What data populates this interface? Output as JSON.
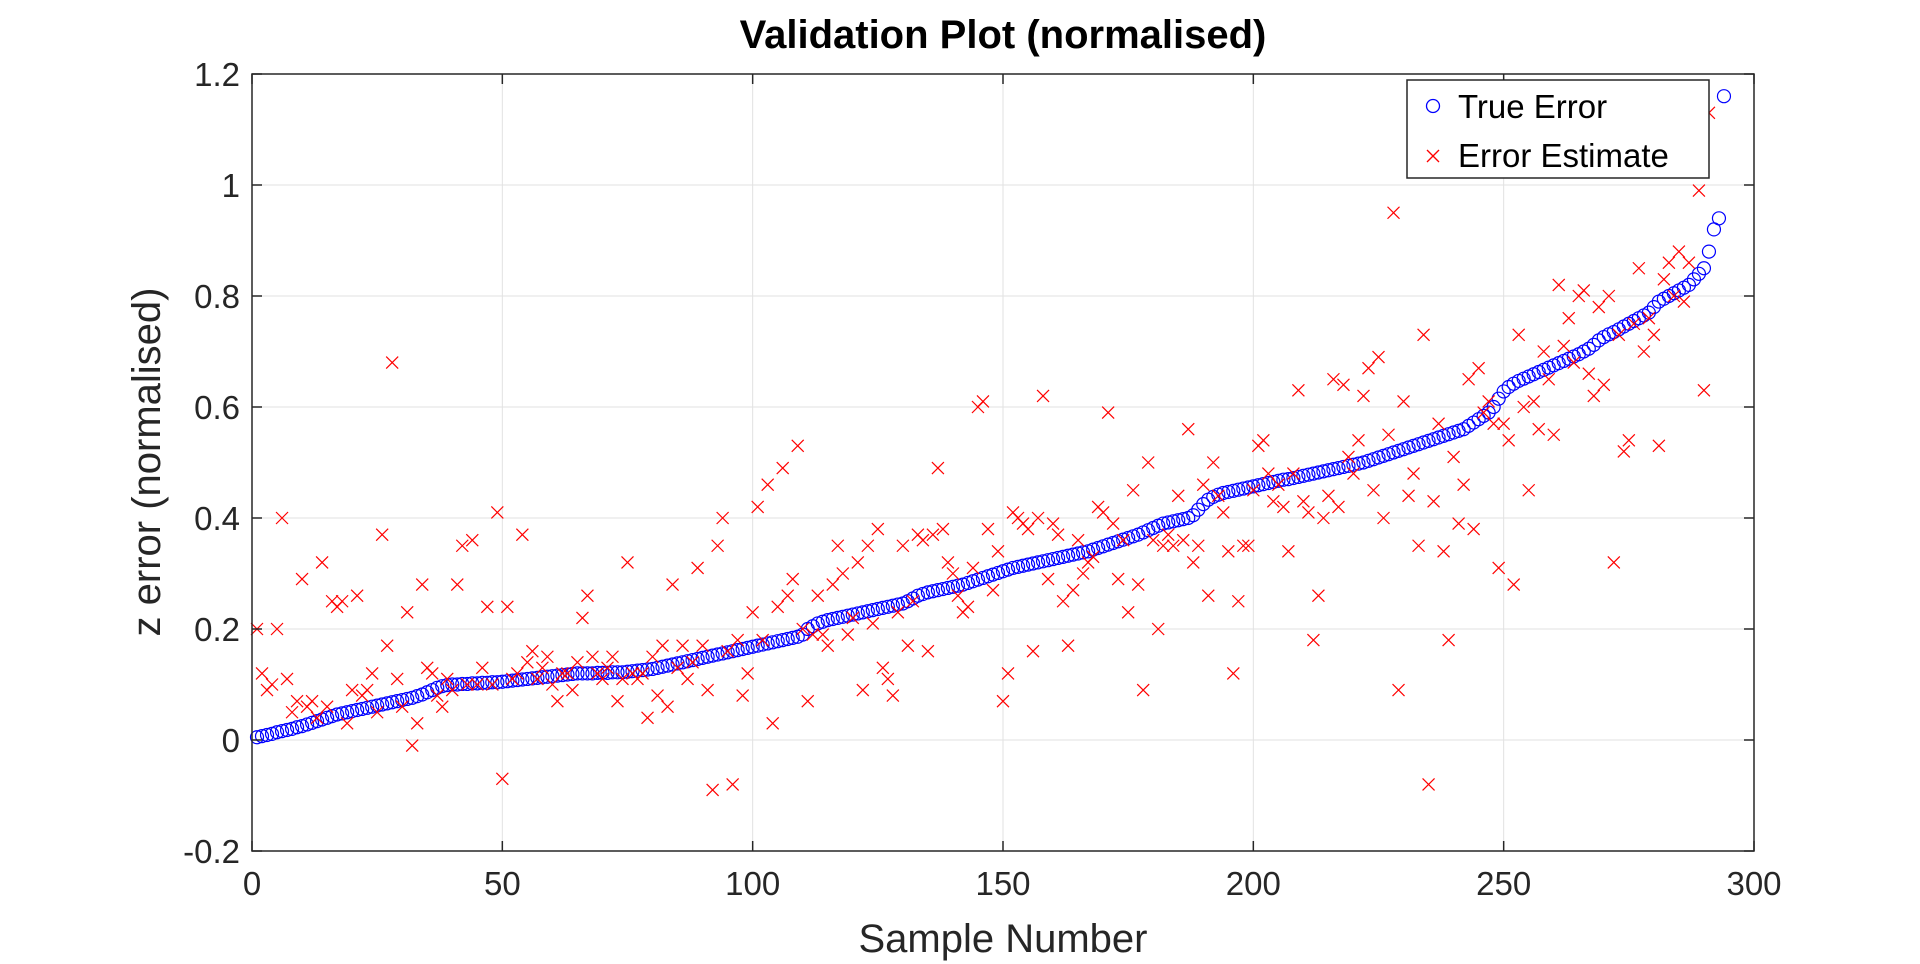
{
  "chart_data": {
    "type": "scatter",
    "title": "Validation Plot (normalised)",
    "xlabel": "Sample Number",
    "ylabel": "z error (normalised)",
    "xlim": [
      0,
      300
    ],
    "ylim": [
      -0.2,
      1.2
    ],
    "xticks": [
      0,
      50,
      100,
      150,
      200,
      250,
      300
    ],
    "yticks": [
      -0.2,
      0,
      0.2,
      0.4,
      0.6,
      0.8,
      1,
      1.2
    ],
    "xtick_labels": [
      "0",
      "50",
      "100",
      "150",
      "200",
      "250",
      "300"
    ],
    "ytick_labels": [
      "-0.2",
      "0",
      "0.2",
      "0.4",
      "0.6",
      "0.8",
      "1",
      "1.2"
    ],
    "grid": true,
    "legend_position": "top-right",
    "colors": {
      "true_error": "#0000ff",
      "error_estimate": "#ff0000"
    },
    "series": [
      {
        "name": "True Error",
        "marker": "circle",
        "x": "1..300",
        "y": [
          0.005,
          0.007,
          0.009,
          0.011,
          0.014,
          0.016,
          0.018,
          0.02,
          0.023,
          0.025,
          0.028,
          0.031,
          0.034,
          0.037,
          0.04,
          0.043,
          0.046,
          0.048,
          0.05,
          0.052,
          0.054,
          0.056,
          0.058,
          0.06,
          0.062,
          0.064,
          0.066,
          0.068,
          0.07,
          0.072,
          0.074,
          0.076,
          0.079,
          0.082,
          0.086,
          0.09,
          0.094,
          0.097,
          0.099,
          0.1,
          0.1,
          0.101,
          0.101,
          0.102,
          0.102,
          0.103,
          0.103,
          0.104,
          0.104,
          0.105,
          0.106,
          0.107,
          0.108,
          0.109,
          0.11,
          0.111,
          0.112,
          0.113,
          0.114,
          0.115,
          0.116,
          0.117,
          0.118,
          0.119,
          0.12,
          0.12,
          0.12,
          0.12,
          0.121,
          0.121,
          0.121,
          0.122,
          0.122,
          0.122,
          0.123,
          0.124,
          0.125,
          0.126,
          0.127,
          0.128,
          0.13,
          0.132,
          0.134,
          0.136,
          0.138,
          0.14,
          0.142,
          0.144,
          0.146,
          0.148,
          0.15,
          0.152,
          0.154,
          0.156,
          0.158,
          0.16,
          0.162,
          0.164,
          0.166,
          0.168,
          0.17,
          0.172,
          0.174,
          0.176,
          0.178,
          0.18,
          0.182,
          0.184,
          0.186,
          0.19,
          0.2,
          0.205,
          0.21,
          0.213,
          0.216,
          0.218,
          0.22,
          0.222,
          0.224,
          0.226,
          0.228,
          0.23,
          0.232,
          0.234,
          0.236,
          0.238,
          0.24,
          0.242,
          0.244,
          0.246,
          0.25,
          0.255,
          0.26,
          0.263,
          0.266,
          0.268,
          0.27,
          0.272,
          0.274,
          0.276,
          0.278,
          0.28,
          0.283,
          0.286,
          0.289,
          0.292,
          0.295,
          0.298,
          0.301,
          0.304,
          0.307,
          0.31,
          0.312,
          0.314,
          0.316,
          0.318,
          0.32,
          0.322,
          0.324,
          0.326,
          0.328,
          0.33,
          0.332,
          0.334,
          0.336,
          0.338,
          0.34,
          0.343,
          0.346,
          0.349,
          0.352,
          0.355,
          0.358,
          0.361,
          0.364,
          0.367,
          0.37,
          0.374,
          0.378,
          0.382,
          0.386,
          0.39,
          0.392,
          0.394,
          0.396,
          0.398,
          0.4,
          0.405,
          0.415,
          0.425,
          0.433,
          0.438,
          0.442,
          0.445,
          0.447,
          0.449,
          0.451,
          0.453,
          0.455,
          0.457,
          0.459,
          0.461,
          0.463,
          0.465,
          0.467,
          0.469,
          0.47,
          0.472,
          0.474,
          0.476,
          0.478,
          0.48,
          0.482,
          0.484,
          0.486,
          0.488,
          0.49,
          0.492,
          0.494,
          0.496,
          0.498,
          0.5,
          0.503,
          0.506,
          0.509,
          0.512,
          0.515,
          0.518,
          0.521,
          0.524,
          0.527,
          0.53,
          0.533,
          0.536,
          0.539,
          0.542,
          0.545,
          0.548,
          0.551,
          0.554,
          0.557,
          0.56,
          0.566,
          0.572,
          0.578,
          0.584,
          0.59,
          0.6,
          0.615,
          0.628,
          0.636,
          0.642,
          0.647,
          0.651,
          0.655,
          0.659,
          0.663,
          0.667,
          0.671,
          0.675,
          0.679,
          0.683,
          0.687,
          0.691,
          0.695,
          0.7,
          0.705,
          0.712,
          0.72,
          0.726,
          0.731,
          0.735,
          0.74,
          0.745,
          0.75,
          0.755,
          0.76,
          0.765,
          0.77,
          0.78,
          0.79,
          0.795,
          0.8,
          0.805,
          0.81,
          0.815,
          0.82,
          0.83,
          0.84,
          0.85,
          0.88,
          0.92,
          0.94,
          1.16
        ]
      },
      {
        "name": "Error Estimate",
        "marker": "x",
        "x": "1..300",
        "y": [
          0.2,
          0.12,
          0.09,
          0.1,
          0.2,
          0.4,
          0.11,
          0.05,
          0.07,
          0.29,
          0.06,
          0.07,
          0.04,
          0.32,
          0.06,
          0.25,
          0.24,
          0.25,
          0.03,
          0.09,
          0.26,
          0.08,
          0.09,
          0.12,
          0.05,
          0.37,
          0.17,
          0.68,
          0.11,
          0.06,
          0.23,
          -0.01,
          0.03,
          0.28,
          0.13,
          0.12,
          0.08,
          0.06,
          0.11,
          0.09,
          0.28,
          0.35,
          0.1,
          0.36,
          0.1,
          0.13,
          0.24,
          0.1,
          0.41,
          -0.07,
          0.24,
          0.11,
          0.12,
          0.37,
          0.14,
          0.16,
          0.11,
          0.13,
          0.15,
          0.1,
          0.07,
          0.12,
          0.12,
          0.09,
          0.14,
          0.22,
          0.26,
          0.15,
          0.12,
          0.11,
          0.13,
          0.15,
          0.07,
          0.11,
          0.32,
          0.12,
          0.11,
          0.12,
          0.04,
          0.15,
          0.08,
          0.17,
          0.06,
          0.28,
          0.13,
          0.17,
          0.11,
          0.14,
          0.31,
          0.17,
          0.09,
          -0.09,
          0.35,
          0.4,
          0.16,
          -0.08,
          0.18,
          0.08,
          0.12,
          0.23,
          0.42,
          0.18,
          0.46,
          0.03,
          0.24,
          0.49,
          0.26,
          0.29,
          0.53,
          0.2,
          0.07,
          0.19,
          0.26,
          0.19,
          0.17,
          0.28,
          0.35,
          0.3,
          0.19,
          0.22,
          0.32,
          0.09,
          0.35,
          0.21,
          0.38,
          0.13,
          0.11,
          0.08,
          0.23,
          0.35,
          0.17,
          0.25,
          0.37,
          0.36,
          0.16,
          0.37,
          0.49,
          0.38,
          0.32,
          0.3,
          0.26,
          0.23,
          0.24,
          0.31,
          0.6,
          0.61,
          0.38,
          0.27,
          0.34,
          0.07,
          0.12,
          0.41,
          0.4,
          0.39,
          0.38,
          0.16,
          0.4,
          0.62,
          0.29,
          0.39,
          0.37,
          0.25,
          0.17,
          0.27,
          0.36,
          0.3,
          0.32,
          0.33,
          0.42,
          0.41,
          0.59,
          0.39,
          0.29,
          0.36,
          0.23,
          0.45,
          0.28,
          0.09,
          0.5,
          0.36,
          0.2,
          0.35,
          0.37,
          0.35,
          0.44,
          0.36,
          0.56,
          0.32,
          0.35,
          0.46,
          0.26,
          0.5,
          0.44,
          0.41,
          0.34,
          0.12,
          0.25,
          0.35,
          0.35,
          0.45,
          0.53,
          0.54,
          0.48,
          0.43,
          0.46,
          0.42,
          0.34,
          0.48,
          0.63,
          0.43,
          0.41,
          0.18,
          0.26,
          0.4,
          0.44,
          0.65,
          0.42,
          0.64,
          0.51,
          0.48,
          0.54,
          0.62,
          0.67,
          0.45,
          0.69,
          0.4,
          0.55,
          0.95,
          0.09,
          0.61,
          0.44,
          0.48,
          0.35,
          0.73,
          -0.08,
          0.43,
          0.57,
          0.34,
          0.18,
          0.51,
          0.39,
          0.46,
          0.65,
          0.38,
          0.67,
          0.59,
          0.61,
          0.57,
          0.31,
          0.57,
          0.54,
          0.28,
          0.73,
          0.6,
          0.45,
          0.61,
          0.56,
          0.7,
          0.65,
          0.55,
          0.82,
          0.71,
          0.76,
          0.68,
          0.8,
          0.81,
          0.66,
          0.62,
          0.78,
          0.64,
          0.8,
          0.32,
          0.73,
          0.52,
          0.54,
          0.75,
          0.85,
          0.7,
          0.76,
          0.73,
          0.53,
          0.83,
          0.86,
          0.8,
          0.88,
          0.79,
          0.86,
          1.05,
          0.99,
          0.63,
          1.13
        ]
      }
    ]
  }
}
